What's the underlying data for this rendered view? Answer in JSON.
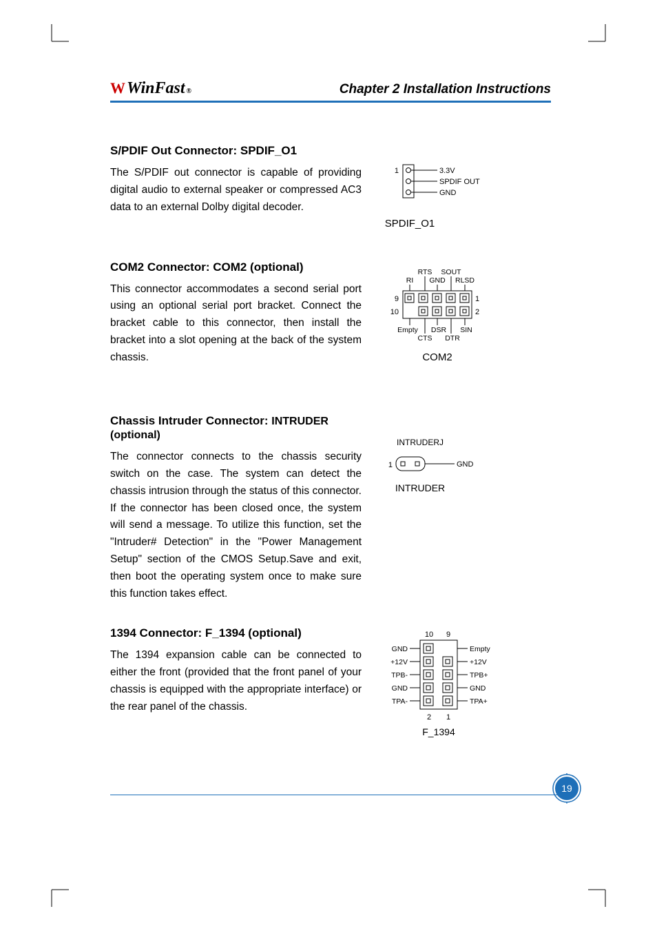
{
  "header": {
    "logo_text": "WinFast",
    "logo_reg": "®",
    "chapter_title": "Chapter 2   Installation Instructions"
  },
  "sections": {
    "spdif": {
      "heading": "S/PDIF Out Connector: SPDIF_O1",
      "body": "The S/PDIF out connector is capable of providing digital audio to external speaker or compressed AC3 data to an external Dolby digital decoder.",
      "diagram": {
        "pins": [
          "3.3V",
          "SPDIF OUT",
          "GND"
        ],
        "pin1_marker": "1",
        "caption": "SPDIF_O1"
      }
    },
    "com2": {
      "heading": "COM2 Connector: COM2 (optional)",
      "body": "This connector accommodates a second serial port using an optional serial port bracket. Connect the bracket cable to this connector, then install the bracket into a slot opening at the back of the system chassis.",
      "diagram": {
        "top_labels": [
          "RI",
          "RTS",
          "GND",
          "SOUT",
          "RLSD"
        ],
        "bottom_labels": [
          "Empty",
          "CTS",
          "DSR",
          "DTR",
          "SIN"
        ],
        "left_nums": [
          "9",
          "10"
        ],
        "right_nums": [
          "1",
          "2"
        ],
        "caption": "COM2"
      }
    },
    "intruder": {
      "heading_prefix": "Chassis Intruder Connector: ",
      "heading_bold": "INTRUDER (optional)",
      "body": "The connector connects to the chassis security switch on the case. The system can detect the chassis intrusion through the status of this connector. If the connector has been closed once, the system will send a message. To utilize this function, set the \"Intruder# Detection\" in the \"Power Management Setup\" section of the CMOS Setup.Save and exit, then boot the operating system once to make sure this function takes effect.",
      "diagram": {
        "left_label": "INTRUDERJ",
        "right_label": "GND",
        "pin1": "1",
        "caption": "INTRUDER"
      }
    },
    "f1394": {
      "heading": "1394 Connector: F_1394 (optional)",
      "body": "The 1394 expansion cable can be connected to either the front (provided that the front panel of your chassis is equipped with the appropriate interface) or the rear panel of the chassis.",
      "diagram": {
        "left_labels": [
          "GND",
          "+12V",
          "TPB-",
          "GND",
          "TPA-"
        ],
        "right_labels": [
          "Empty",
          "+12V",
          "TPB+",
          "GND",
          "TPA+"
        ],
        "top_nums": [
          "10",
          "9"
        ],
        "bottom_nums": [
          "2",
          "1"
        ],
        "caption": "F_1394"
      }
    }
  },
  "page_number": "19",
  "colors": {
    "accent_blue": "#1e6fb8",
    "logo_red": "#c00000"
  }
}
